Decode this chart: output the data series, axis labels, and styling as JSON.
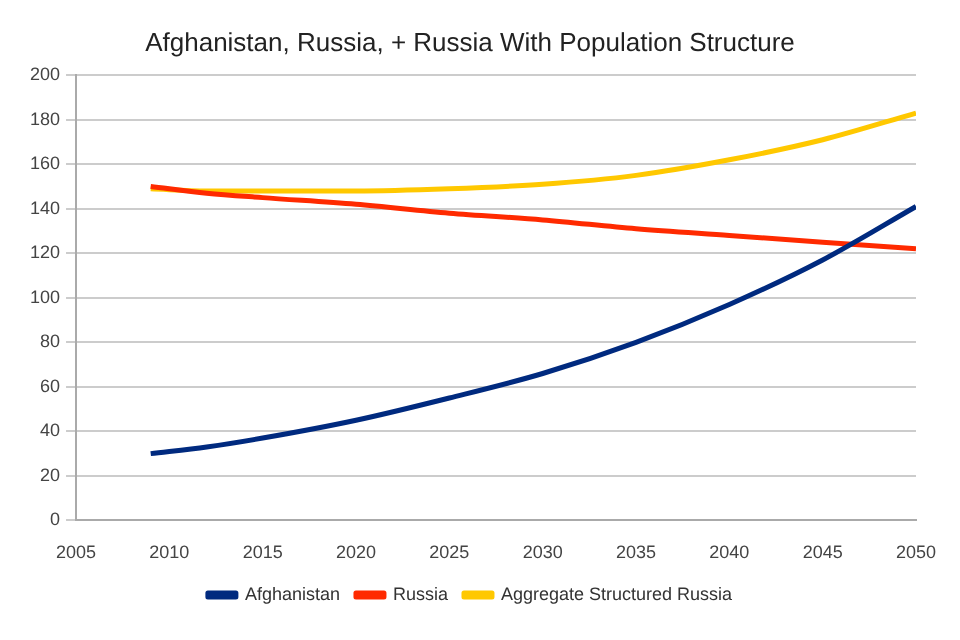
{
  "chart_data": {
    "type": "line",
    "title": "Afghanistan, Russia, + Russia With Population Structure",
    "x": [
      2009,
      2012,
      2015,
      2020,
      2025,
      2030,
      2035,
      2040,
      2045,
      2050
    ],
    "series": [
      {
        "name": "Afghanistan",
        "color": "#002a7f",
        "values": [
          30,
          33,
          37,
          45,
          55,
          66,
          80,
          97,
          117,
          141
        ]
      },
      {
        "name": "Russia",
        "color": "#ff2a00",
        "values": [
          150,
          147,
          145,
          142,
          138,
          135,
          131,
          128,
          125,
          122
        ]
      },
      {
        "name": "Aggregate Structured Russia",
        "color": "#ffc800",
        "values": [
          149,
          148,
          148,
          148,
          149,
          151,
          155,
          162,
          171,
          183
        ]
      }
    ],
    "xlim": [
      2005,
      2050
    ],
    "xticks": [
      2005,
      2010,
      2015,
      2020,
      2025,
      2030,
      2035,
      2040,
      2045,
      2050
    ],
    "ylim": [
      0,
      200
    ],
    "yticks": [
      0,
      20,
      40,
      60,
      80,
      100,
      120,
      140,
      160,
      180,
      200
    ],
    "grid": "y",
    "legend": "bottom",
    "marker": "none",
    "line_style": "solid"
  }
}
